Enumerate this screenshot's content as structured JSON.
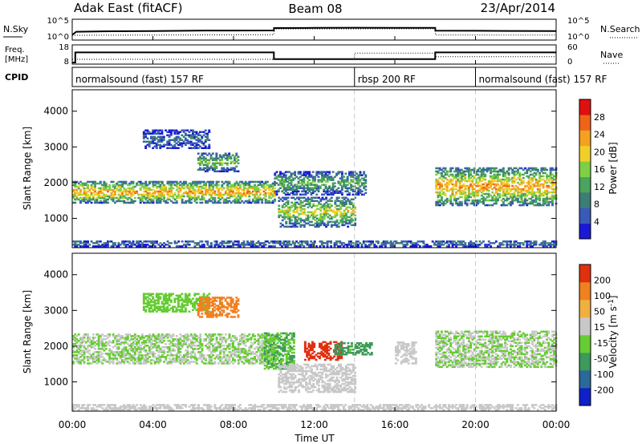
{
  "header": {
    "station": "Adak East (fitACF)",
    "beam": "Beam 08",
    "date": "23/Apr/2014"
  },
  "noise_panel": {
    "left_label": "N.Sky",
    "right_label": "N.Search",
    "left_ticks": [
      "10^5",
      "10^0"
    ],
    "right_ticks": [
      "10^5",
      "10^0"
    ]
  },
  "freq_panel": {
    "left_label_1": "Freq.",
    "left_label_2": "[MHz]",
    "right_label": "Nave",
    "left_ticks": [
      "18",
      "8"
    ],
    "right_ticks": [
      "60",
      "0"
    ]
  },
  "cpid_panel": {
    "label": "CPID",
    "segments": [
      {
        "name": "normalsound (fast) 157 RF",
        "start": 0,
        "end": 14
      },
      {
        "name": "rbsp 200 RF",
        "start": 14,
        "end": 20
      },
      {
        "name": "normalsound (fast) 157 RF",
        "start": 20,
        "end": 24
      }
    ]
  },
  "x_axis": {
    "label": "Time UT",
    "ticks": [
      "00:00",
      "04:00",
      "08:00",
      "12:00",
      "16:00",
      "20:00",
      "00:00"
    ]
  },
  "chart_data": [
    {
      "type": "line",
      "panel": "noise",
      "x_range": [
        0,
        24
      ],
      "y_scale": "log",
      "ylim": [
        1,
        100000
      ],
      "series": [
        {
          "name": "N.Sky",
          "x": [
            0,
            0.2,
            2,
            4,
            6,
            8,
            10,
            10.01,
            12,
            14,
            16,
            18,
            18.01,
            20,
            22,
            24
          ],
          "y": [
            10,
            80,
            110,
            130,
            170,
            180,
            190,
            900,
            1000,
            1100,
            1050,
            1000,
            160,
            150,
            140,
            130
          ]
        },
        {
          "name": "N.Search",
          "x": [
            0,
            10,
            10.01,
            18,
            18.01,
            24
          ],
          "y": [
            8,
            12,
            500,
            600,
            10,
            9
          ]
        }
      ]
    },
    {
      "type": "line",
      "panel": "frequency",
      "x_range": [
        0,
        24
      ],
      "ylim": [
        8,
        18
      ],
      "y2lim": [
        0,
        60
      ],
      "series": [
        {
          "name": "Freq.",
          "x": [
            0,
            0.15,
            0.15,
            10,
            10,
            18,
            18,
            24
          ],
          "y": [
            8,
            8,
            14.3,
            14.3,
            10.1,
            10.1,
            14.3,
            14.3
          ]
        },
        {
          "name": "Nave",
          "x": [
            0,
            14,
            14,
            18,
            18,
            24
          ],
          "y": [
            12,
            12,
            35,
            35,
            22,
            22
          ]
        }
      ]
    },
    {
      "type": "heatmap",
      "panel": "power",
      "x_range": [
        0,
        24
      ],
      "xlabel": "Time UT",
      "ylabel": "Slant Range [km]",
      "ylim": [
        180,
        4600
      ],
      "y_ticks": [
        1000,
        2000,
        3000,
        4000
      ],
      "colorbar": {
        "label": "Power [dB]",
        "ticks": [
          "28",
          "24",
          "20",
          "16",
          "12",
          "8",
          "4"
        ],
        "range": [
          0,
          30
        ],
        "colors": [
          "#1a1ad6",
          "#3a5ab8",
          "#3c7d78",
          "#4aa45e",
          "#7fcf46",
          "#f0d028",
          "#f5a020",
          "#f06418",
          "#e01010"
        ]
      },
      "regions": [
        {
          "t": [
            0,
            10
          ],
          "r": [
            1420,
            2020
          ],
          "level": 18
        },
        {
          "t": [
            3.5,
            6.8
          ],
          "r": [
            2950,
            3450
          ],
          "level": 6
        },
        {
          "t": [
            6.2,
            8.2
          ],
          "r": [
            2300,
            2800
          ],
          "level": 12
        },
        {
          "t": [
            10.2,
            14
          ],
          "r": [
            750,
            1600
          ],
          "level": 14
        },
        {
          "t": [
            10,
            14.5
          ],
          "r": [
            1650,
            2300
          ],
          "level": 10
        },
        {
          "t": [
            18,
            24
          ],
          "r": [
            1350,
            2400
          ],
          "level": 18
        },
        {
          "t": [
            0,
            24
          ],
          "r": [
            200,
            380
          ],
          "level": 6
        }
      ]
    },
    {
      "type": "heatmap",
      "panel": "velocity",
      "x_range": [
        0,
        24
      ],
      "xlabel": "Time UT",
      "ylabel": "Slant Range [km]",
      "ylim": [
        180,
        4600
      ],
      "y_ticks": [
        1000,
        2000,
        3000,
        4000
      ],
      "colorbar": {
        "label": "Velocity [m s^-1]",
        "ticks": [
          "200",
          "100",
          "50",
          "15",
          "-15",
          "-50",
          "-100",
          "-200"
        ],
        "range": [
          -250,
          250
        ],
        "colors": [
          "#1020c8",
          "#2a6a9a",
          "#3c9a5a",
          "#66cc33",
          "#c8c8c8",
          "#f0b040",
          "#f08020",
          "#e03010"
        ]
      },
      "regions": [
        {
          "t": [
            0,
            10
          ],
          "r": [
            1500,
            2350
          ],
          "level": 0
        },
        {
          "t": [
            3.5,
            6.8
          ],
          "r": [
            2950,
            3450
          ],
          "level": -40
        },
        {
          "t": [
            6.2,
            8.2
          ],
          "r": [
            2800,
            3350
          ],
          "level": 150
        },
        {
          "t": [
            9.5,
            11
          ],
          "r": [
            1350,
            2350
          ],
          "level": -60
        },
        {
          "t": [
            11.5,
            13.3
          ],
          "r": [
            1600,
            2100
          ],
          "level": 210
        },
        {
          "t": [
            10.2,
            14
          ],
          "r": [
            700,
            1500
          ],
          "level": 40
        },
        {
          "t": [
            13,
            14.8
          ],
          "r": [
            1750,
            2100
          ],
          "level": -80
        },
        {
          "t": [
            16,
            17
          ],
          "r": [
            1500,
            2100
          ],
          "level": 40
        },
        {
          "t": [
            18,
            24
          ],
          "r": [
            1400,
            2400
          ],
          "level": 0
        },
        {
          "t": [
            0,
            24
          ],
          "r": [
            200,
            380
          ],
          "level": 30
        }
      ]
    }
  ]
}
